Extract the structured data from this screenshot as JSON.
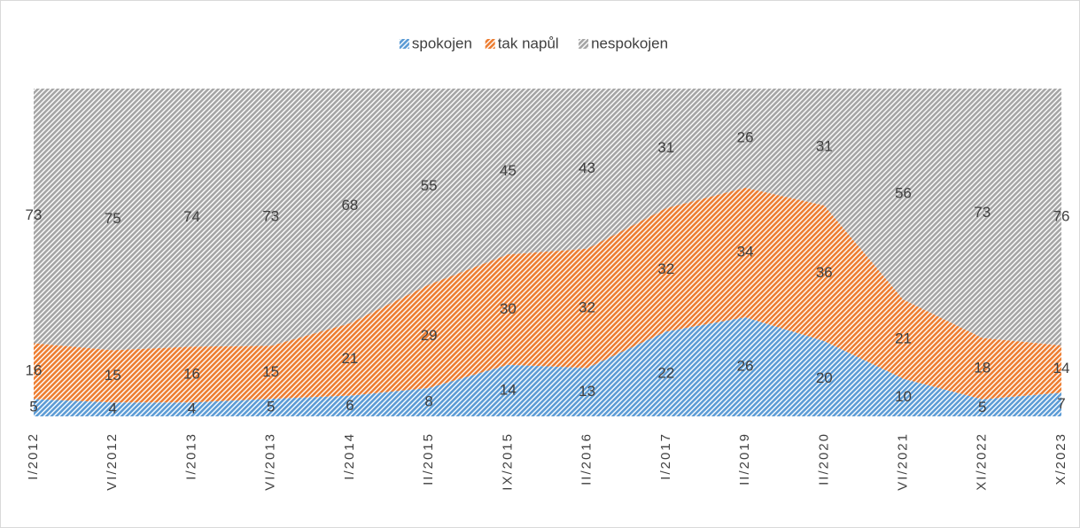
{
  "chart_data": {
    "type": "area",
    "stacking": "percent",
    "categories": [
      "I/2012",
      "VI/2012",
      "I/2013",
      "VI/2013",
      "I/2014",
      "II/2015",
      "IX/2015",
      "II/2016",
      "I/2017",
      "II/2019",
      "II/2020",
      "VI/2021",
      "XI/2022",
      "X/2023"
    ],
    "series": [
      {
        "name": "spokojen",
        "color": "#5b9bd5",
        "values": [
          5,
          4,
          4,
          5,
          6,
          8,
          14,
          13,
          22,
          26,
          20,
          10,
          5,
          7
        ]
      },
      {
        "name": "tak napůl",
        "color": "#ed7d31",
        "values": [
          16,
          15,
          16,
          15,
          21,
          29,
          30,
          32,
          32,
          34,
          36,
          21,
          18,
          14
        ]
      },
      {
        "name": "nespokojen",
        "color": "#a5a5a5",
        "values": [
          73,
          75,
          74,
          73,
          68,
          55,
          45,
          43,
          31,
          26,
          31,
          56,
          73,
          76
        ]
      }
    ],
    "legend": "top"
  }
}
